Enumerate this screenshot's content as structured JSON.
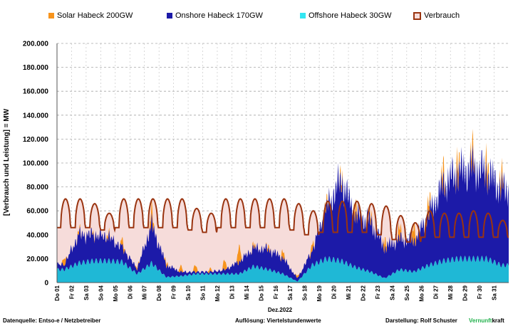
{
  "legend": [
    {
      "label": "Solar Habeck 200GW",
      "color": "#f7941d"
    },
    {
      "label": "Onshore Habeck 170GW",
      "color": "#1c1aa8"
    },
    {
      "label": "Offshore Habeck 30GW",
      "color": "#33e6f2"
    },
    {
      "label": "Verbrauch",
      "color": "#b5481d"
    }
  ],
  "footer": {
    "source": "Datenquelle: Entso-e  / Netzbetreiber",
    "resolution": "Auflösung: Viertelstundenwerte",
    "author": "Darstellung:  Rolf Schuster",
    "brand_green": "Vernunft",
    "brand_black": "kraft"
  },
  "chart_data": {
    "type": "area",
    "ylabel": "[Verbrauch und Leistung] =  MW",
    "xlabel": "Dez.2022",
    "ylim": [
      0,
      200000
    ],
    "yticks": [
      "0",
      "20.000",
      "40.000",
      "60.000",
      "80.000",
      "100.000",
      "120.000",
      "140.000",
      "160.000",
      "180.000",
      "200.000"
    ],
    "grid": true,
    "legend_position": "top",
    "categories": [
      "Do 01",
      "Fr 02",
      "Sa 03",
      "So 04",
      "Mo 05",
      "Di 06",
      "Mi 07",
      "Do 08",
      "Fr 09",
      "Sa 10",
      "So 11",
      "Mo 12",
      "Di 13",
      "Mi 14",
      "Do 15",
      "Fr 16",
      "Sa 17",
      "So 18",
      "Mo 19",
      "Di 20",
      "Mi 21",
      "Do 22",
      "Fr 23",
      "Sa 24",
      "So 25",
      "Mo 26",
      "Di 27",
      "Mi 28",
      "Do 29",
      "Fr 30",
      "Sa 31"
    ],
    "series": [
      {
        "name": "Offshore Habeck 30GW",
        "unit": "MW",
        "daily_avg": [
          12000,
          18000,
          20000,
          20000,
          19000,
          8000,
          18000,
          5000,
          6000,
          8000,
          8000,
          8000,
          8000,
          15000,
          12000,
          8000,
          1000,
          16000,
          22000,
          20000,
          14000,
          10000,
          4000,
          12000,
          10000,
          16000,
          20000,
          22000,
          22000,
          22000,
          16000
        ]
      },
      {
        "name": "Onshore Habeck 170GW",
        "unit": "MW",
        "daily_avg": [
          5000,
          28000,
          26000,
          24000,
          14000,
          5000,
          38000,
          12000,
          4000,
          2000,
          2000,
          4000,
          12000,
          18000,
          20000,
          16000,
          3000,
          14000,
          50000,
          80000,
          50000,
          50000,
          30000,
          30000,
          30000,
          50000,
          75000,
          85000,
          90000,
          85000,
          75000
        ]
      },
      {
        "name": "Solar Habeck 200GW",
        "unit": "MW",
        "daily_peak": [
          6000,
          3000,
          2000,
          3000,
          6000,
          2000,
          12000,
          3000,
          5000,
          6000,
          3000,
          8000,
          14000,
          3000,
          3000,
          6000,
          2000,
          6000,
          5000,
          6000,
          10000,
          6000,
          8000,
          10000,
          14000,
          12000,
          14000,
          16000,
          14000,
          16000,
          12000
        ]
      },
      {
        "name": "Verbrauch",
        "unit": "MW",
        "daily_peak": [
          70000,
          70000,
          66000,
          58000,
          70000,
          70000,
          70000,
          70000,
          70000,
          62000,
          58000,
          70000,
          70000,
          70000,
          70000,
          70000,
          66000,
          60000,
          68000,
          68000,
          68000,
          66000,
          64000,
          56000,
          50000,
          60000,
          58000,
          58000,
          60000,
          58000,
          52000
        ],
        "daily_low": [
          46000,
          46000,
          46000,
          44000,
          46000,
          46000,
          46000,
          46000,
          46000,
          44000,
          42000,
          46000,
          46000,
          46000,
          46000,
          46000,
          44000,
          40000,
          42000,
          42000,
          42000,
          42000,
          40000,
          36000,
          34000,
          38000,
          38000,
          38000,
          38000,
          38000,
          38000
        ]
      }
    ]
  }
}
